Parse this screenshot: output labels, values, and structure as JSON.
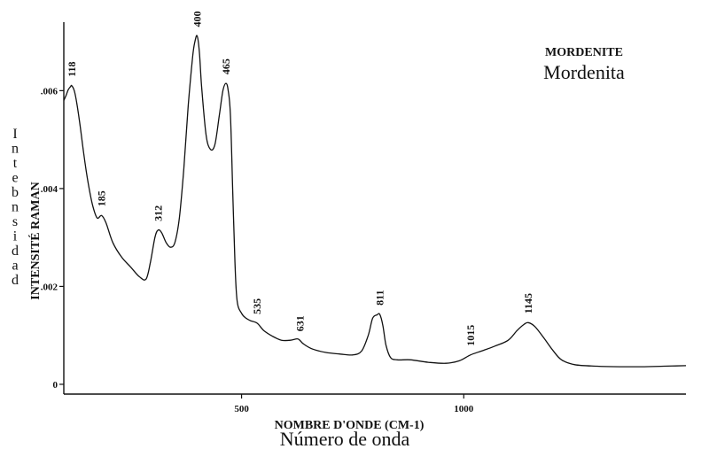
{
  "chart_data": {
    "type": "line",
    "title": "MORDENITE",
    "subtitle": "Mordenita",
    "xlabel": "NOMBRE D'ONDE (CM-1)",
    "xlabel_secondary": "Número de onda",
    "ylabel": "INTENSITÉ RAMAN",
    "ylabel_secondary": "Intebnsidad",
    "xlim": [
      100,
      1500
    ],
    "ylim": [
      -0.0002,
      0.0074
    ],
    "x_ticks": [
      {
        "value": 500,
        "label": "500"
      },
      {
        "value": 1000,
        "label": "1000"
      }
    ],
    "y_ticks": [
      {
        "value": 0,
        "label": "0"
      },
      {
        "value": 0.002,
        "label": ".002"
      },
      {
        "value": 0.004,
        "label": ".004"
      },
      {
        "value": 0.006,
        "label": ".006"
      }
    ],
    "grid": false,
    "legend": "none",
    "line_color": "#111111",
    "series": [
      {
        "x": [
          100,
          105,
          110,
          115,
          118,
          125,
          135,
          145,
          155,
          165,
          175,
          185,
          195,
          210,
          230,
          250,
          270,
          285,
          295,
          305,
          312,
          320,
          330,
          340,
          350,
          360,
          370,
          380,
          390,
          395,
          400,
          405,
          410,
          420,
          430,
          440,
          450,
          458,
          465,
          470,
          475,
          480,
          485,
          490,
          500,
          510,
          520,
          535,
          550,
          570,
          590,
          610,
          625,
          631,
          640,
          660,
          690,
          720,
          750,
          770,
          785,
          795,
          805,
          811,
          818,
          825,
          835,
          850,
          880,
          920,
          960,
          990,
          1015,
          1040,
          1070,
          1100,
          1120,
          1135,
          1145,
          1160,
          1180,
          1200,
          1220,
          1250,
          1300,
          1350,
          1400,
          1450,
          1500
        ],
        "y": [
          0.0058,
          0.0059,
          0.00602,
          0.00608,
          0.0061,
          0.00595,
          0.0054,
          0.0047,
          0.0041,
          0.00365,
          0.0034,
          0.00345,
          0.0033,
          0.0029,
          0.0026,
          0.0024,
          0.0022,
          0.00215,
          0.0025,
          0.003,
          0.00315,
          0.0031,
          0.0029,
          0.0028,
          0.0029,
          0.0034,
          0.0044,
          0.0057,
          0.0067,
          0.007,
          0.00712,
          0.0068,
          0.0061,
          0.0051,
          0.0048,
          0.0049,
          0.0055,
          0.006,
          0.00615,
          0.006,
          0.0055,
          0.004,
          0.0025,
          0.0017,
          0.00145,
          0.00135,
          0.0013,
          0.00125,
          0.0011,
          0.00098,
          0.0009,
          0.0009,
          0.00093,
          0.0009,
          0.00082,
          0.00072,
          0.00065,
          0.00062,
          0.0006,
          0.00068,
          0.001,
          0.00135,
          0.00142,
          0.00143,
          0.0012,
          0.0008,
          0.00055,
          0.0005,
          0.0005,
          0.00045,
          0.00043,
          0.00048,
          0.0006,
          0.00068,
          0.00078,
          0.0009,
          0.0011,
          0.00122,
          0.00126,
          0.00118,
          0.00095,
          0.0007,
          0.0005,
          0.0004,
          0.00037,
          0.00036,
          0.00036,
          0.00037,
          0.00038
        ]
      }
    ],
    "peak_labels": [
      {
        "x": 118,
        "y": 0.0061,
        "label": "118"
      },
      {
        "x": 185,
        "y": 0.00345,
        "label": "185"
      },
      {
        "x": 312,
        "y": 0.00315,
        "label": "312"
      },
      {
        "x": 400,
        "y": 0.00712,
        "label": "400"
      },
      {
        "x": 465,
        "y": 0.00615,
        "label": "465"
      },
      {
        "x": 535,
        "y": 0.00125,
        "label": "535"
      },
      {
        "x": 631,
        "y": 0.0009,
        "label": "631"
      },
      {
        "x": 811,
        "y": 0.00143,
        "label": "811"
      },
      {
        "x": 1015,
        "y": 0.0006,
        "label": "1015"
      },
      {
        "x": 1145,
        "y": 0.00126,
        "label": "1145"
      }
    ]
  }
}
